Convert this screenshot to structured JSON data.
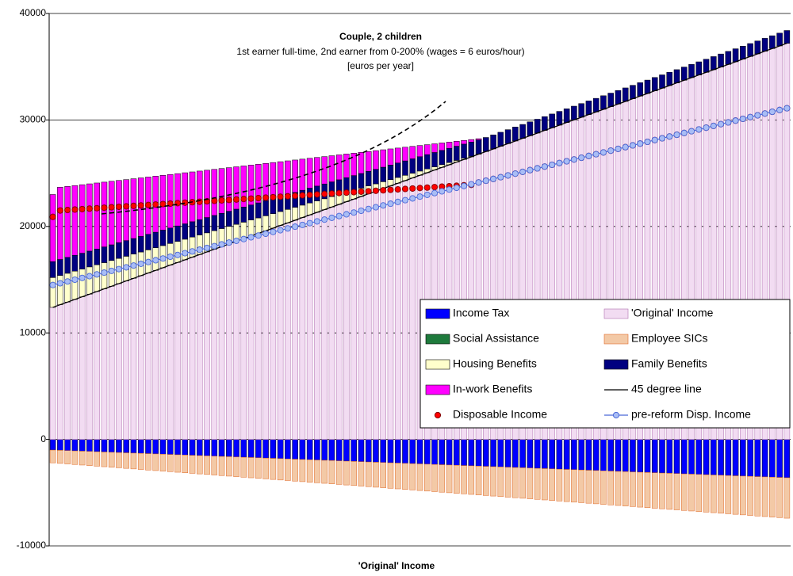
{
  "chart_data": {
    "type": "bar",
    "title": "Couple, 2 children",
    "subtitle": [
      "1st earner full-time, 2nd earner from 0-200% (wages = 6 euros/hour)",
      "[euros per year]"
    ],
    "xlabel": "'Original' Income",
    "ylim": [
      -10000,
      40000
    ],
    "yticks": [
      -10000,
      0,
      10000,
      20000,
      30000,
      40000
    ],
    "grid": true,
    "categories": [
      null,
      null,
      null,
      null,
      null,
      null,
      null,
      null,
      null,
      null,
      null,
      null,
      null,
      null,
      null,
      null,
      null,
      null,
      null,
      null,
      null,
      null,
      null,
      null,
      null,
      null,
      null,
      null,
      null,
      null,
      null,
      null,
      null,
      null,
      null,
      null,
      null,
      null,
      null,
      null,
      null,
      null,
      null,
      null,
      null,
      null,
      null,
      null,
      null,
      null,
      null,
      null,
      null,
      null,
      null,
      null,
      null,
      null,
      null,
      null,
      null,
      null,
      null,
      null,
      null,
      null,
      null,
      null,
      null,
      null,
      null,
      null,
      null,
      null,
      null,
      null,
      null,
      null,
      null,
      null,
      null,
      null,
      null,
      null,
      null,
      null,
      null,
      null,
      null,
      null,
      null,
      null,
      null,
      null,
      null,
      null,
      null,
      null,
      null,
      null,
      null
    ],
    "series": [
      {
        "name": "Income Tax",
        "type": "bar",
        "color": "#0000ff",
        "values": [
          -1000,
          -1026,
          -1052,
          -1078,
          -1104,
          -1130,
          -1156,
          -1182,
          -1208,
          -1234,
          -1260,
          -1286,
          -1312,
          -1338,
          -1364,
          -1390,
          -1416,
          -1442,
          -1468,
          -1494,
          -1520,
          -1546,
          -1572,
          -1598,
          -1624,
          -1650,
          -1676,
          -1702,
          -1728,
          -1754,
          -1780,
          -1806,
          -1832,
          -1858,
          -1884,
          -1910,
          -1936,
          -1962,
          -1988,
          -2014,
          -2040,
          -2066,
          -2092,
          -2118,
          -2144,
          -2170,
          -2196,
          -2222,
          -2248,
          -2274,
          -2300,
          -2326,
          -2352,
          -2378,
          -2404,
          -2430,
          -2456,
          -2482,
          -2508,
          -2534,
          -2560,
          -2586,
          -2612,
          -2638,
          -2664,
          -2690,
          -2716,
          -2742,
          -2768,
          -2794,
          -2820,
          -2846,
          -2872,
          -2898,
          -2924,
          -2950,
          -2976,
          -3002,
          -3028,
          -3054,
          -3080,
          -3106,
          -3132,
          -3158,
          -3184,
          -3210,
          -3236,
          -3262,
          -3288,
          -3314,
          -3340,
          -3366,
          -3392,
          -3418,
          -3444,
          -3470,
          -3496,
          -3522,
          -3548,
          -3574,
          -3600
        ]
      },
      {
        "name": "'Original' Income",
        "type": "bar",
        "color": "#f2dcf2",
        "values": [
          12400,
          12648,
          12896,
          13144,
          13392,
          13640,
          13888,
          14136,
          14384,
          14632,
          14880,
          15128,
          15376,
          15624,
          15872,
          16120,
          16368,
          16616,
          16864,
          17112,
          17360,
          17608,
          17856,
          18104,
          18352,
          18600,
          18848,
          19096,
          19344,
          19592,
          19840,
          20088,
          20336,
          20584,
          20832,
          21080,
          21328,
          21576,
          21824,
          22072,
          22320,
          22568,
          22816,
          23064,
          23312,
          23560,
          23808,
          24056,
          24304,
          24552,
          24800,
          25048,
          25296,
          25544,
          25792,
          26040,
          26288,
          26536,
          26784,
          27032,
          27280,
          27528,
          27776,
          28024,
          28272,
          28520,
          28768,
          29016,
          29264,
          29512,
          29760,
          30008,
          30256,
          30504,
          30752,
          31000,
          31248,
          31496,
          31744,
          31992,
          32240,
          32488,
          32736,
          32984,
          33232,
          33480,
          33728,
          33976,
          34224,
          34472,
          34720,
          34968,
          35216,
          35464,
          35712,
          35960,
          36208,
          36456,
          36704,
          36952,
          37200
        ]
      },
      {
        "name": "Social Assistance",
        "type": "bar",
        "color": "#1e7a3c",
        "values": [
          0,
          0,
          0,
          0,
          0,
          0,
          0,
          0,
          0,
          0,
          0,
          0,
          0,
          0,
          0,
          0,
          0,
          0,
          0,
          0,
          0,
          0,
          0,
          0,
          0,
          0,
          0,
          0,
          0,
          0,
          0,
          0,
          0,
          0,
          0,
          0,
          0,
          0,
          0,
          0,
          0,
          0,
          0,
          0,
          0,
          0,
          0,
          0,
          0,
          0,
          0,
          0,
          0,
          0,
          0,
          0,
          0,
          0,
          0,
          0,
          0,
          0,
          0,
          0,
          0,
          0,
          0,
          0,
          0,
          0,
          0,
          0,
          0,
          0,
          0,
          0,
          0,
          0,
          0,
          0,
          0,
          0,
          0,
          0,
          0,
          0,
          0,
          0,
          0,
          0,
          0,
          0,
          0,
          0,
          0,
          0,
          0,
          0,
          0,
          0,
          0
        ]
      },
      {
        "name": "Employee SICs",
        "type": "bar",
        "color": "#f3c9a6",
        "values": [
          -1200,
          -1226,
          -1252,
          -1278,
          -1304,
          -1330,
          -1356,
          -1382,
          -1408,
          -1434,
          -1460,
          -1486,
          -1512,
          -1538,
          -1564,
          -1590,
          -1616,
          -1642,
          -1668,
          -1694,
          -1720,
          -1746,
          -1772,
          -1798,
          -1824,
          -1850,
          -1876,
          -1902,
          -1928,
          -1954,
          -1980,
          -2006,
          -2032,
          -2058,
          -2084,
          -2110,
          -2136,
          -2162,
          -2188,
          -2214,
          -2240,
          -2266,
          -2292,
          -2318,
          -2344,
          -2370,
          -2396,
          -2422,
          -2448,
          -2474,
          -2500,
          -2526,
          -2552,
          -2578,
          -2604,
          -2630,
          -2656,
          -2682,
          -2708,
          -2734,
          -2760,
          -2786,
          -2812,
          -2838,
          -2864,
          -2890,
          -2916,
          -2942,
          -2968,
          -2994,
          -3020,
          -3046,
          -3072,
          -3098,
          -3124,
          -3150,
          -3176,
          -3202,
          -3228,
          -3254,
          -3280,
          -3306,
          -3332,
          -3358,
          -3384,
          -3410,
          -3436,
          -3462,
          -3488,
          -3514,
          -3540,
          -3566,
          -3592,
          -3618,
          -3644,
          -3670,
          -3696,
          -3722,
          -3748,
          -3774,
          -3800
        ]
      },
      {
        "name": "Housing Benefits",
        "type": "bar",
        "color": "#ffffcc",
        "values": [
          2800,
          2752,
          2704,
          2656,
          2608,
          2560,
          2512,
          2464,
          2416,
          2368,
          2320,
          2272,
          2224,
          2176,
          2128,
          2080,
          2032,
          1984,
          1936,
          1888,
          1840,
          1792,
          1744,
          1696,
          1648,
          1600,
          1552,
          1504,
          1456,
          1408,
          1360,
          1312,
          1264,
          1216,
          1168,
          1120,
          1072,
          1024,
          976,
          928,
          880,
          832,
          784,
          736,
          688,
          640,
          592,
          544,
          496,
          448,
          400,
          352,
          304,
          256,
          208,
          160,
          112,
          64,
          16,
          0,
          0,
          0,
          0,
          0,
          0,
          0,
          0,
          0,
          0,
          0,
          0,
          0,
          0,
          0,
          0,
          0,
          0,
          0,
          0,
          0,
          0,
          0,
          0,
          0,
          0,
          0,
          0,
          0,
          0,
          0,
          0,
          0,
          0,
          0,
          0,
          0,
          0,
          0,
          0,
          0,
          0
        ]
      },
      {
        "name": "Family Benefits",
        "type": "bar",
        "color": "#000080",
        "values": [
          1500,
          1497,
          1494,
          1491,
          1488,
          1485,
          1482,
          1479,
          1476,
          1473,
          1470,
          1467,
          1464,
          1461,
          1458,
          1455,
          1452,
          1449,
          1446,
          1443,
          1440,
          1437,
          1434,
          1431,
          1428,
          1425,
          1422,
          1419,
          1416,
          1413,
          1410,
          1407,
          1404,
          1401,
          1398,
          1395,
          1392,
          1389,
          1386,
          1383,
          1380,
          1377,
          1374,
          1371,
          1368,
          1365,
          1362,
          1359,
          1356,
          1353,
          1350,
          1347,
          1344,
          1341,
          1338,
          1335,
          1332,
          1329,
          1326,
          1323,
          1320,
          1317,
          1314,
          1311,
          1308,
          1305,
          1302,
          1299,
          1296,
          1293,
          1290,
          1287,
          1284,
          1281,
          1278,
          1275,
          1272,
          1269,
          1266,
          1263,
          1260,
          1257,
          1254,
          1251,
          1248,
          1245,
          1242,
          1239,
          1236,
          1233,
          1230,
          1227,
          1224,
          1221,
          1218,
          1215,
          1212,
          1209,
          1206,
          1203,
          1200
        ]
      },
      {
        "name": "In-work Benefits",
        "type": "bar",
        "color": "#ff00ff",
        "values": [
          6300,
          6783,
          6666,
          6549,
          6432,
          6315,
          6198,
          6081,
          5964,
          5847,
          5730,
          5613,
          5496,
          5379,
          5262,
          5145,
          5028,
          4911,
          4794,
          4677,
          4560,
          4443,
          4326,
          4209,
          4092,
          3975,
          3858,
          3741,
          3624,
          3507,
          3390,
          3273,
          3156,
          3039,
          2922,
          2805,
          2688,
          2571,
          2454,
          2337,
          2220,
          2103,
          1986,
          1869,
          1752,
          1635,
          1518,
          1401,
          1284,
          1167,
          1050,
          933,
          816,
          699,
          582,
          465,
          348,
          231,
          114,
          0,
          0,
          0,
          0,
          0,
          0,
          0,
          0,
          0,
          0,
          0,
          0,
          0,
          0,
          0,
          0,
          0,
          0,
          0,
          0,
          0,
          0,
          0,
          0,
          0,
          0,
          0,
          0,
          0,
          0,
          0,
          0,
          0,
          0,
          0,
          0,
          0,
          0,
          0,
          0,
          0,
          0
        ]
      },
      {
        "name": "45 degree line",
        "type": "line",
        "color": "#000000",
        "values": [
          12400,
          12648,
          12896,
          13144,
          13392,
          13640,
          13888,
          14136,
          14384,
          14632,
          14880,
          15128,
          15376,
          15624,
          15872,
          16120,
          16368,
          16616,
          16864,
          17112,
          17360,
          17608,
          17856,
          18104,
          18352,
          18600,
          18848,
          19096,
          19344,
          19592,
          19840,
          20088,
          20336,
          20584,
          20832,
          21080,
          21328,
          21576,
          21824,
          22072,
          22320,
          22568,
          22816,
          23064,
          23312,
          23560,
          23808,
          24056,
          24304,
          24552,
          24800,
          25048,
          25296,
          25544,
          25792,
          26040,
          26288,
          26536,
          26784,
          27032,
          27280,
          27528,
          27776,
          28024,
          28272,
          28520,
          28768,
          29016,
          29264,
          29512,
          29760,
          30008,
          30256,
          30504,
          30752,
          31000,
          31248,
          31496,
          31744,
          31992,
          32240,
          32488,
          32736,
          32984,
          33232,
          33480,
          33728,
          33976,
          34224,
          34472,
          34720,
          34968,
          35216,
          35464,
          35712,
          35960,
          36208,
          36456,
          36704,
          36952,
          37200
        ]
      },
      {
        "name": "Disposable Income",
        "type": "scatter",
        "color": "#ff0000",
        "values": [
          20900,
          21500,
          21543,
          21586,
          21629,
          21672,
          21715,
          21758,
          21801,
          21844,
          21887,
          21930,
          21973,
          22016,
          22059,
          22102,
          22145,
          22188,
          22231,
          22274,
          22317,
          22360,
          22403,
          22446,
          22489,
          22532,
          22575,
          22618,
          22661,
          22704,
          22747,
          22790,
          22833,
          22876,
          22919,
          22962,
          23005,
          23048,
          23091,
          23134,
          23177,
          23220,
          23263,
          23306,
          23349,
          23392,
          23435,
          23478,
          23521,
          23564,
          23607,
          23650,
          23693,
          23736,
          23779,
          23822,
          23865,
          23908,
          24128,
          24294,
          24460,
          24626,
          24792,
          24958,
          25124,
          25290,
          25456,
          25622,
          25788,
          25954,
          26120,
          26286,
          26452,
          26618,
          26784,
          26950,
          27116,
          27282,
          27448,
          27614,
          27780,
          27946,
          28112,
          28278,
          28444,
          28610,
          28776,
          28942,
          29108,
          29274,
          29440,
          29606,
          29772,
          29938,
          30104,
          30270,
          30436,
          30602,
          30768,
          30934,
          31100
        ]
      },
      {
        "name": "pre-reform Disp. Income",
        "type": "line-marker",
        "color": "#4a68d8",
        "values": [
          14500,
          14666,
          14832,
          14998,
          15164,
          15330,
          15496,
          15662,
          15828,
          15994,
          16160,
          16326,
          16492,
          16658,
          16824,
          16990,
          17156,
          17322,
          17488,
          17654,
          17820,
          17986,
          18152,
          18318,
          18484,
          18650,
          18816,
          18982,
          19148,
          19314,
          19480,
          19646,
          19812,
          19978,
          20144,
          20310,
          20476,
          20642,
          20808,
          20974,
          21140,
          21306,
          21472,
          21638,
          21804,
          21970,
          22136,
          22302,
          22468,
          22634,
          22800,
          22966,
          23132,
          23298,
          23464,
          23630,
          23796,
          23962,
          24128,
          24294,
          24460,
          24626,
          24792,
          24958,
          25124,
          25290,
          25456,
          25622,
          25788,
          25954,
          26120,
          26286,
          26452,
          26618,
          26784,
          26950,
          27116,
          27282,
          27448,
          27614,
          27780,
          27946,
          28112,
          28278,
          28444,
          28610,
          28776,
          28942,
          29108,
          29274,
          29440,
          29606,
          29772,
          29938,
          30104,
          30270,
          30436,
          30602,
          30768,
          30934,
          31100
        ]
      }
    ]
  }
}
